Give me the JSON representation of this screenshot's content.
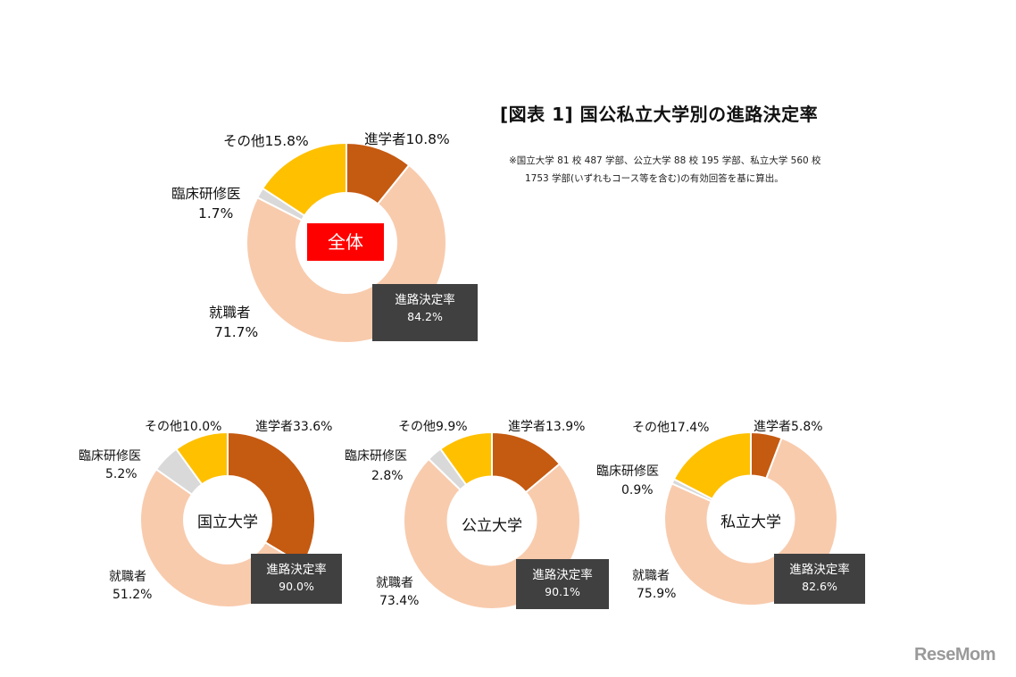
{
  "title": "[図表 1] 国公私立大学別の進路決定率",
  "note": {
    "line1": "※国立大学 81 校 487 学部、公立大学 88 校 195 学部、私立大学 560 校",
    "line2": "1753 学部(いずれもコース等を含む)の有効回答を基に算出。"
  },
  "logo": "ReseMom",
  "colors": {
    "shingaku": "#c55a11",
    "shushoku": "#f8cbad",
    "rinsho": "#d9d9d9",
    "sonota": "#ffc000",
    "red_box": "#ff0000",
    "dark_box": "#404040"
  },
  "rate_label": "進路決定率",
  "chart_data": [
    {
      "type": "pie",
      "name": "全体",
      "categories": [
        "進学者",
        "就職者",
        "臨床研修医",
        "その他"
      ],
      "values": [
        10.8,
        71.7,
        1.7,
        15.8
      ],
      "rate": "84.2%",
      "labels": {
        "shingaku": "進学者10.8%",
        "shushoku_name": "就職者",
        "shushoku_value": "71.7%",
        "rinsho_name": "臨床研修医",
        "rinsho_value": "1.7%",
        "sonota": "その他15.8%"
      }
    },
    {
      "type": "pie",
      "name": "国立大学",
      "categories": [
        "進学者",
        "就職者",
        "臨床研修医",
        "その他"
      ],
      "values": [
        33.6,
        51.2,
        5.2,
        10.0
      ],
      "rate": "90.0%",
      "labels": {
        "shingaku": "進学者33.6%",
        "shushoku_name": "就職者",
        "shushoku_value": "51.2%",
        "rinsho_name": "臨床研修医",
        "rinsho_value": "5.2%",
        "sonota": "その他10.0%"
      }
    },
    {
      "type": "pie",
      "name": "公立大学",
      "categories": [
        "進学者",
        "就職者",
        "臨床研修医",
        "その他"
      ],
      "values": [
        13.9,
        73.4,
        2.8,
        9.9
      ],
      "rate": "90.1%",
      "labels": {
        "shingaku": "進学者13.9%",
        "shushoku_name": "就職者",
        "shushoku_value": "73.4%",
        "rinsho_name": "臨床研修医",
        "rinsho_value": "2.8%",
        "sonota": "その他9.9%"
      }
    },
    {
      "type": "pie",
      "name": "私立大学",
      "categories": [
        "進学者",
        "就職者",
        "臨床研修医",
        "その他"
      ],
      "values": [
        5.8,
        75.9,
        0.9,
        17.4
      ],
      "rate": "82.6%",
      "labels": {
        "shingaku": "進学者5.8%",
        "shushoku_name": "就職者",
        "shushoku_value": "75.9%",
        "rinsho_name": "臨床研修医",
        "rinsho_value": "0.9%",
        "sonota": "その他17.4%"
      }
    }
  ]
}
